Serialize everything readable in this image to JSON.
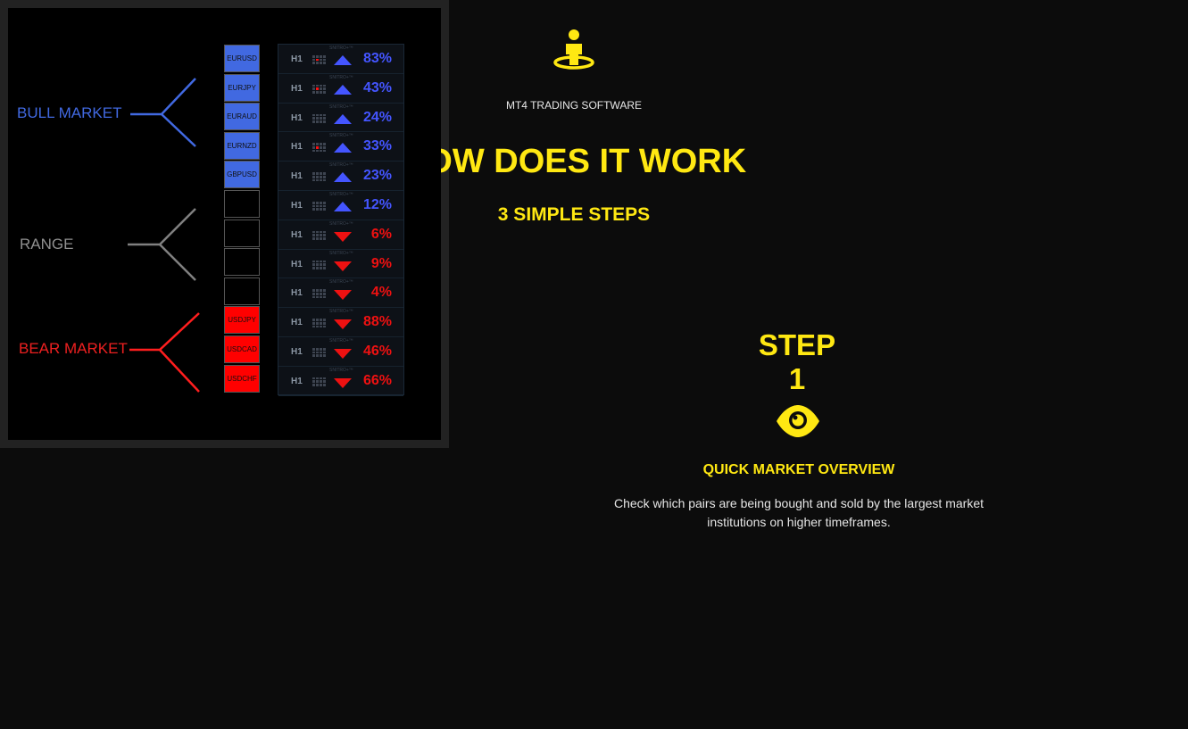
{
  "header": {
    "icon": "person-location-icon",
    "kicker": "MT4 TRADING SOFTWARE",
    "title": "HOW DOES IT WORK",
    "subtitle": "3 SIMPLE STEPS"
  },
  "colors": {
    "accent": "#ffe812",
    "bull": "#4169e1",
    "bear": "#ff0000",
    "range": "#808080",
    "up": "#4455ff",
    "down": "#ee1111"
  },
  "diagram": {
    "labels": {
      "bull": "BULL MARKET",
      "range": "RANGE",
      "bear": "BEAR MARKET"
    },
    "brand": "SNITRO+™",
    "timeframe": "H1",
    "rows": [
      {
        "pair": "EURUSD",
        "type": "bull",
        "dir": "up",
        "pct": "83%",
        "signal": true
      },
      {
        "pair": "EURJPY",
        "type": "bull",
        "dir": "up",
        "pct": "43%",
        "signal": true
      },
      {
        "pair": "EURAUD",
        "type": "bull",
        "dir": "up",
        "pct": "24%",
        "signal": false
      },
      {
        "pair": "EURNZD",
        "type": "bull",
        "dir": "up",
        "pct": "33%",
        "signal": true
      },
      {
        "pair": "GBPUSD",
        "type": "bull",
        "dir": "up",
        "pct": "23%",
        "signal": false
      },
      {
        "pair": "",
        "type": "range",
        "dir": "up",
        "pct": "12%",
        "signal": false
      },
      {
        "pair": "",
        "type": "range",
        "dir": "down",
        "pct": "6%",
        "signal": false
      },
      {
        "pair": "",
        "type": "range",
        "dir": "down",
        "pct": "9%",
        "signal": false
      },
      {
        "pair": "",
        "type": "range",
        "dir": "down",
        "pct": "4%",
        "signal": false
      },
      {
        "pair": "USDJPY",
        "type": "bear",
        "dir": "down",
        "pct": "88%",
        "signal": false
      },
      {
        "pair": "USDCAD",
        "type": "bear",
        "dir": "down",
        "pct": "46%",
        "signal": false
      },
      {
        "pair": "USDCHF",
        "type": "bear",
        "dir": "down",
        "pct": "66%",
        "signal": false
      }
    ]
  },
  "step": {
    "label": "STEP 1",
    "icon": "eye-icon",
    "title": "QUICK MARKET OVERVIEW",
    "text": "Check which pairs are being bought and sold by the largest market institutions on higher timeframes."
  }
}
